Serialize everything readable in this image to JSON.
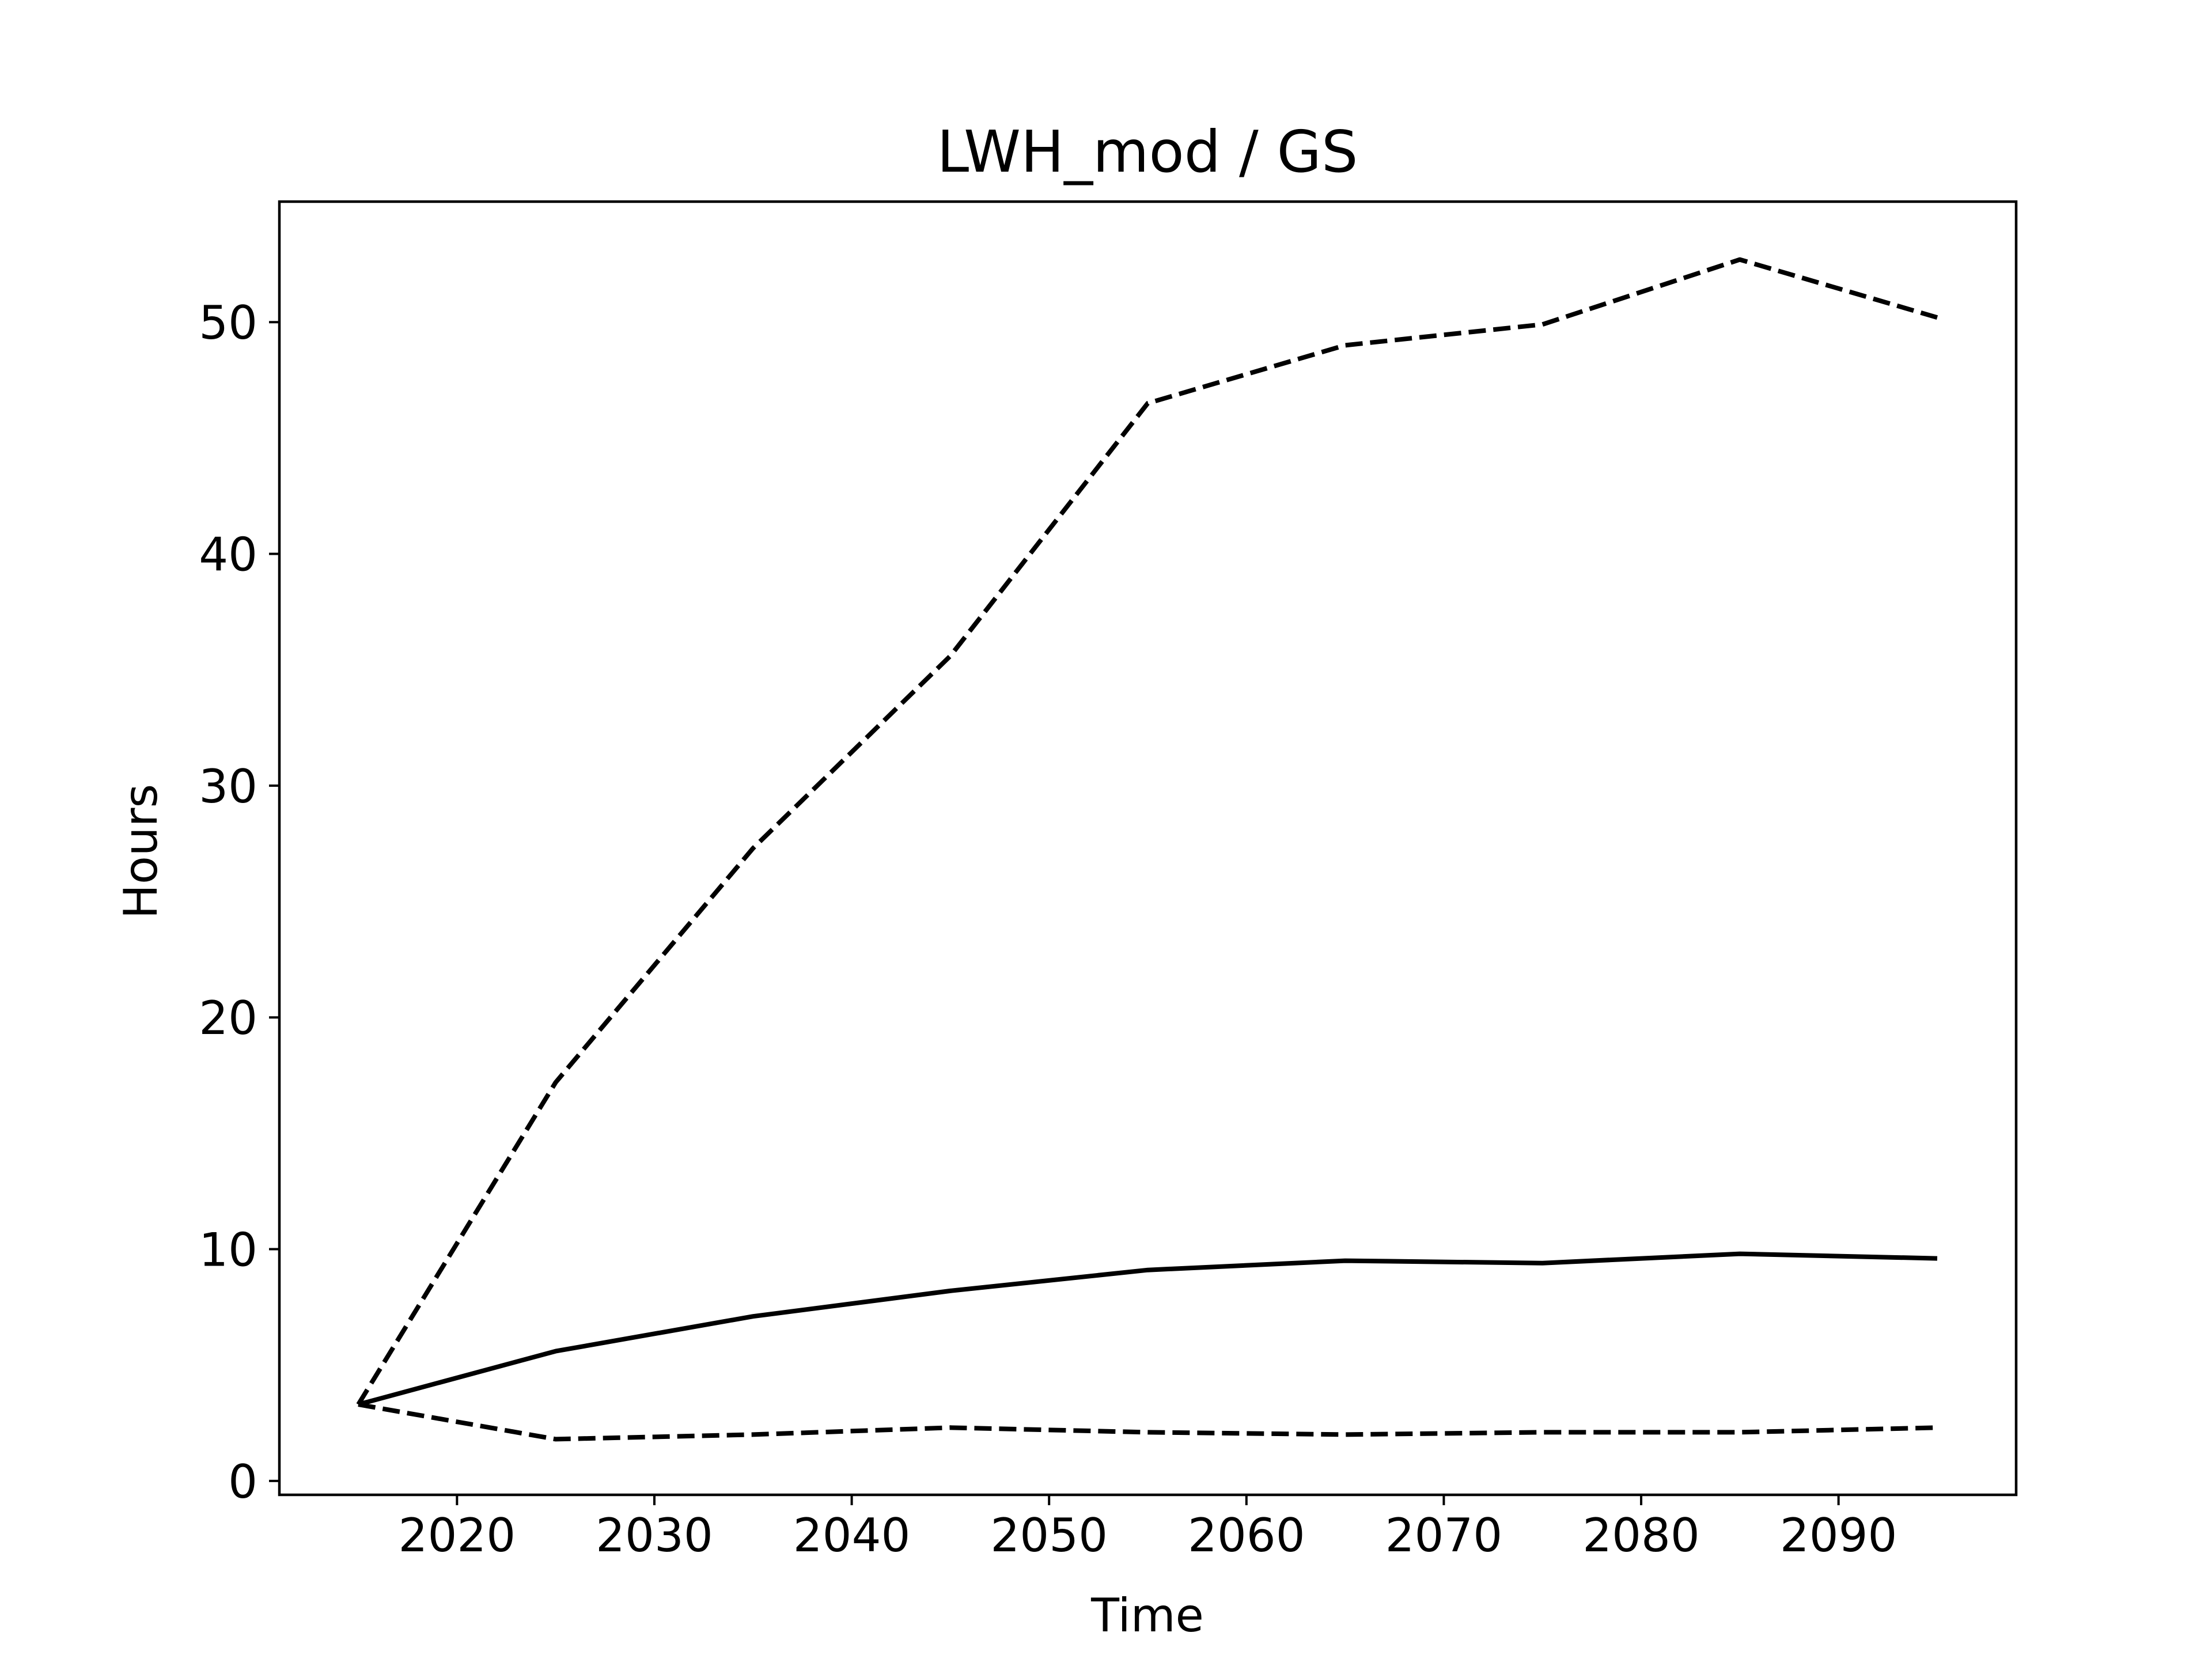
{
  "chart_data": {
    "type": "line",
    "title": "LWH_mod / GS",
    "xlabel": "Time",
    "ylabel": "Hours",
    "xlim": [
      2011,
      2099
    ],
    "ylim": [
      -0.6,
      55.2
    ],
    "xticks": [
      2020,
      2030,
      2040,
      2050,
      2060,
      2070,
      2080,
      2090
    ],
    "yticks": [
      0,
      10,
      20,
      30,
      40,
      50
    ],
    "grid": false,
    "x": [
      2015,
      2025,
      2035,
      2045,
      2055,
      2065,
      2075,
      2085,
      2095
    ],
    "series": [
      {
        "style": "dashed",
        "color": "#000000",
        "values": [
          3.3,
          17.2,
          27.3,
          35.6,
          46.5,
          49.0,
          49.9,
          52.7,
          50.2
        ]
      },
      {
        "style": "solid",
        "color": "#000000",
        "values": [
          3.3,
          5.6,
          7.1,
          8.2,
          9.1,
          9.5,
          9.4,
          9.8,
          9.6
        ]
      },
      {
        "style": "dashed",
        "color": "#000000",
        "values": [
          3.3,
          1.8,
          2.0,
          2.3,
          2.1,
          2.0,
          2.1,
          2.1,
          2.3
        ]
      }
    ]
  }
}
